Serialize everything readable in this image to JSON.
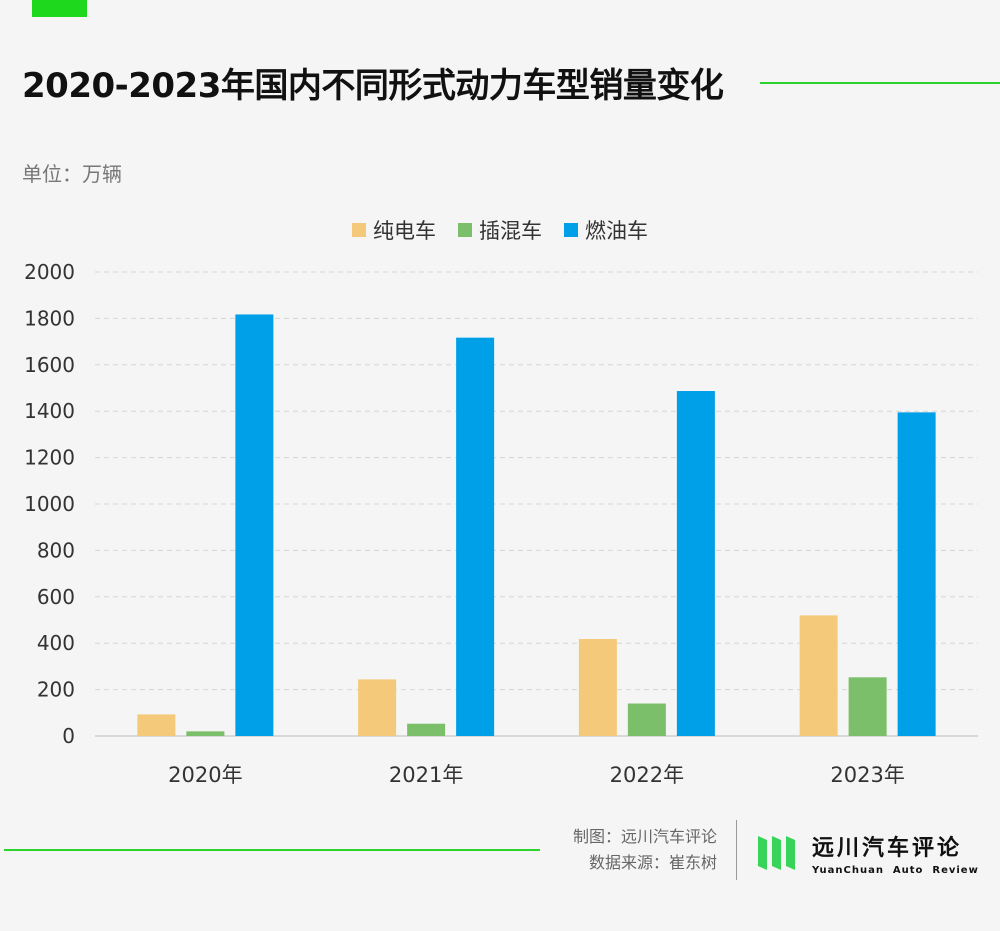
{
  "title": "2020-2023年国内不同形式动力车型销量变化",
  "unit_label": "单位：万辆",
  "legend": [
    {
      "label": "纯电车",
      "color": "#f5c97a"
    },
    {
      "label": "插混车",
      "color": "#7cbf6a"
    },
    {
      "label": "燃油车",
      "color": "#00a0e9"
    }
  ],
  "chart_data": {
    "type": "bar",
    "categories": [
      "2020年",
      "2021年",
      "2022年",
      "2023年"
    ],
    "series": [
      {
        "name": "纯电车",
        "color": "#f5c97a",
        "values": [
          93,
          244,
          418,
          520
        ]
      },
      {
        "name": "插混车",
        "color": "#7cbf6a",
        "values": [
          20,
          53,
          140,
          253
        ]
      },
      {
        "name": "燃油车",
        "color": "#00a0e9",
        "values": [
          1817,
          1717,
          1487,
          1395
        ]
      }
    ],
    "ylim": [
      0,
      2000
    ],
    "yticks": [
      0,
      200,
      400,
      600,
      800,
      1000,
      1200,
      1400,
      1600,
      1800,
      2000
    ],
    "grid": true,
    "legend_position": "top-center"
  },
  "credits": {
    "made_by": "制图：远川汽车评论",
    "source": "数据来源：崔东树"
  },
  "brand": {
    "name_cn": "远川汽车评论",
    "name_en": "YuanChuan  Auto  Review"
  }
}
